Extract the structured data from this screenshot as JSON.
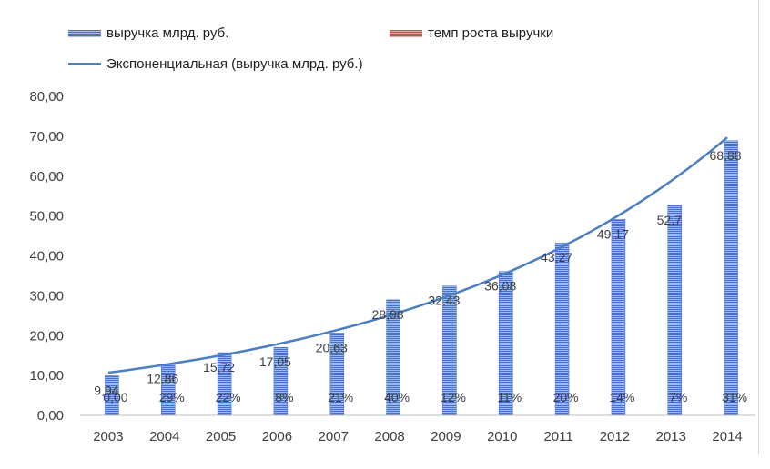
{
  "chart_data": {
    "type": "bar",
    "categories": [
      "2003",
      "2004",
      "2005",
      "2006",
      "2007",
      "2008",
      "2009",
      "2010",
      "2011",
      "2012",
      "2013",
      "2014"
    ],
    "series": [
      {
        "name": "выручка млрд. руб.",
        "values": [
          9.94,
          12.86,
          15.72,
          17.05,
          20.63,
          28.98,
          32.43,
          36.08,
          43.27,
          49.17,
          52.7,
          68.88
        ],
        "labels": [
          "9,94",
          "12,86",
          "15,72",
          "17,05",
          "20,63",
          "28,98",
          "32,43",
          "36,08",
          "43,27",
          "49,17",
          "52,7",
          "68,88"
        ],
        "color": "#4472c4"
      },
      {
        "name": "темп роста выручки",
        "values": [
          0,
          29,
          22,
          8,
          21,
          40,
          12,
          11,
          20,
          14,
          7,
          31
        ],
        "labels": [
          "0,00",
          "29%",
          "22%",
          "8%",
          "21%",
          "40%",
          "12%",
          "11%",
          "20%",
          "14%",
          "7%",
          "31%"
        ],
        "color": "#c0504d"
      }
    ],
    "trendline": {
      "name": "Экспоненциальная (выручка млрд. руб.)",
      "type": "exponential",
      "start_value": 10.7,
      "end_value": 69.7,
      "color": "#4a7fc4"
    },
    "ylim": [
      0,
      80
    ],
    "yticks": [
      "0,00",
      "10,00",
      "20,00",
      "30,00",
      "40,00",
      "50,00",
      "60,00",
      "70,00",
      "80,00"
    ],
    "legend_position": "top",
    "grid": false,
    "title": "",
    "xlabel": "",
    "ylabel": ""
  }
}
